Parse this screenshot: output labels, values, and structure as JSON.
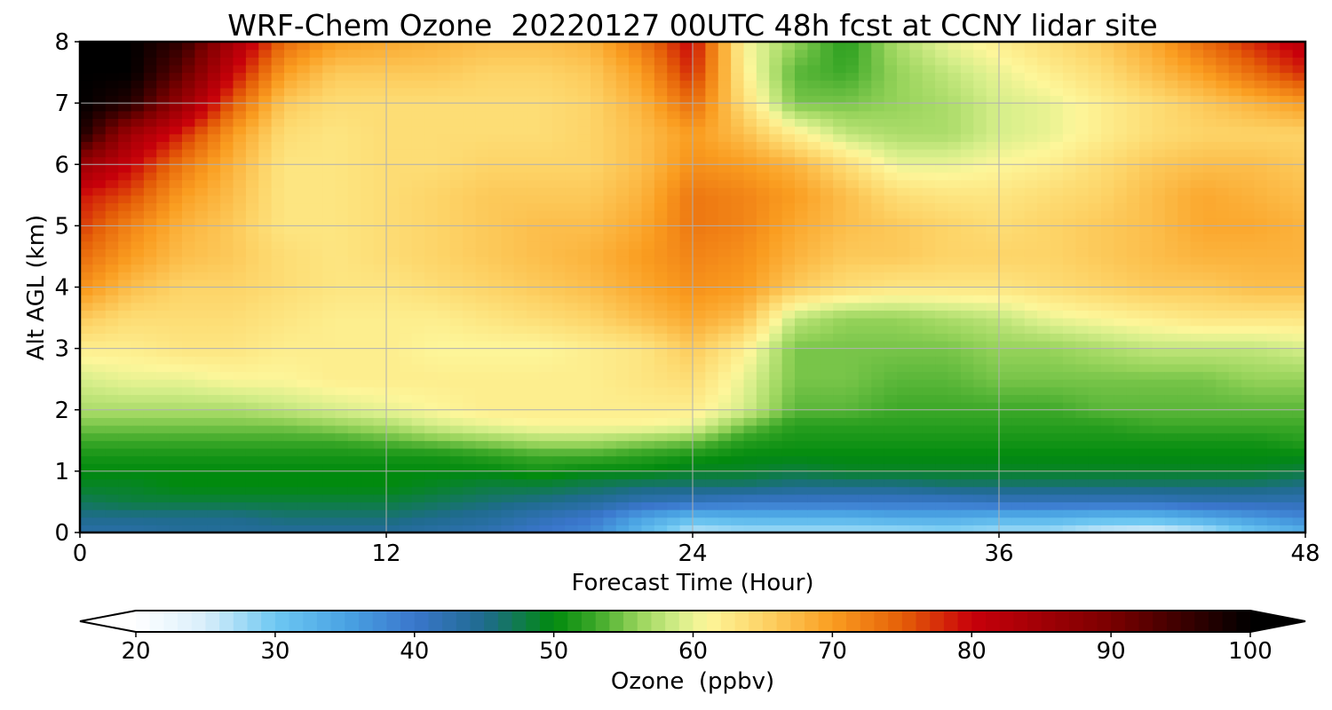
{
  "chart_data": {
    "type": "heatmap",
    "title": "WRF-Chem Ozone  20220127 00UTC 48h fcst at CCNY lidar site",
    "xlabel": "Forecast Time (Hour)",
    "ylabel": "Alt AGL (km)",
    "xlim": [
      0,
      48
    ],
    "ylim": [
      0,
      8
    ],
    "xticks": [
      0,
      12,
      24,
      36,
      48
    ],
    "yticks": [
      0,
      1,
      2,
      3,
      4,
      5,
      6,
      7,
      8
    ],
    "grid": true,
    "x": [
      0,
      2,
      4,
      6,
      8,
      10,
      12,
      14,
      16,
      18,
      20,
      22,
      24,
      26,
      28,
      30,
      32,
      34,
      36,
      38,
      40,
      42,
      44,
      46,
      48
    ],
    "y": [
      0,
      0.25,
      0.5,
      0.75,
      1,
      1.25,
      1.5,
      1.75,
      2,
      2.5,
      3,
      3.5,
      4,
      4.5,
      5,
      5.5,
      6,
      6.5,
      7,
      7.5,
      8
    ],
    "z": [
      [
        43,
        43,
        44,
        44,
        44,
        44,
        44,
        43,
        42,
        40,
        38,
        32,
        26,
        27,
        27,
        27,
        27,
        28,
        27,
        27,
        25,
        24,
        26,
        30,
        33
      ],
      [
        45,
        45,
        45,
        45,
        46,
        46,
        46,
        45,
        44,
        42,
        40,
        35,
        32,
        33,
        33,
        33,
        34,
        34,
        33,
        33,
        32,
        32,
        34,
        36,
        38
      ],
      [
        47,
        48,
        48,
        48,
        48,
        48,
        48,
        47,
        46,
        45,
        44,
        42,
        41,
        40,
        40,
        40,
        40,
        40,
        41,
        41,
        41,
        41,
        42,
        42,
        42
      ],
      [
        49,
        49,
        50,
        50,
        50,
        50,
        50,
        49,
        48,
        48,
        47,
        46,
        46,
        46,
        45,
        45,
        45,
        46,
        46,
        46,
        46,
        46,
        46,
        46,
        45
      ],
      [
        50,
        50,
        50,
        50,
        50,
        50,
        50,
        50,
        50,
        51,
        50,
        50,
        49,
        49,
        48,
        49,
        49,
        49,
        49,
        49,
        49,
        49,
        49,
        49,
        48
      ],
      [
        51,
        51,
        51,
        51,
        51,
        51,
        51,
        51,
        52,
        53,
        53,
        52,
        51,
        50,
        50,
        50,
        50,
        50,
        50,
        50,
        50,
        50,
        50,
        50,
        50
      ],
      [
        53,
        53,
        53,
        53,
        53,
        53,
        54,
        55,
        56,
        57,
        57,
        56,
        55,
        52,
        51,
        51,
        51,
        51,
        51,
        51,
        51,
        51,
        51,
        51,
        52
      ],
      [
        55,
        55,
        55,
        55,
        55,
        56,
        57,
        59,
        60,
        61,
        61,
        61,
        60,
        55,
        52,
        52,
        52,
        52,
        52,
        52,
        52,
        53,
        53,
        53,
        53
      ],
      [
        57,
        57,
        57,
        57,
        58,
        59,
        60,
        61,
        62,
        62,
        62,
        62,
        62,
        59,
        54,
        54,
        53,
        53,
        53,
        53,
        54,
        54,
        54,
        54,
        54
      ],
      [
        59,
        60,
        60,
        61,
        61,
        62,
        62,
        62,
        62,
        62,
        62,
        63,
        64,
        60,
        55,
        55,
        54,
        54,
        55,
        55,
        55,
        55,
        55,
        56,
        56
      ],
      [
        62,
        62,
        63,
        63,
        62,
        62,
        62,
        61,
        61,
        61,
        62,
        63,
        66,
        62,
        55,
        55,
        55,
        55,
        56,
        56,
        57,
        58,
        58,
        58,
        59
      ],
      [
        66,
        64,
        64,
        64,
        63,
        62,
        62,
        62,
        63,
        64,
        65,
        67,
        69,
        67,
        58,
        56,
        56,
        57,
        58,
        60,
        61,
        62,
        63,
        63,
        63
      ],
      [
        71,
        67,
        65,
        65,
        64,
        63,
        63,
        64,
        65,
        66,
        67,
        69,
        71,
        70,
        66,
        64,
        63,
        63,
        63,
        64,
        65,
        66,
        66,
        67,
        67
      ],
      [
        74,
        70,
        67,
        66,
        64,
        63,
        64,
        65,
        66,
        67,
        68,
        70,
        72,
        71,
        68,
        66,
        66,
        65,
        65,
        65,
        66,
        67,
        68,
        68,
        68
      ],
      [
        77,
        72,
        68,
        66,
        63,
        63,
        64,
        65,
        66,
        67,
        67,
        69,
        73,
        72,
        69,
        67,
        66,
        65,
        64,
        65,
        66,
        67,
        69,
        69,
        68
      ],
      [
        79,
        76,
        70,
        67,
        63,
        63,
        64,
        65,
        66,
        66,
        66,
        68,
        73,
        72,
        70,
        67,
        64,
        63,
        63,
        64,
        65,
        67,
        69,
        68,
        67
      ],
      [
        86,
        80,
        73,
        68,
        63,
        63,
        64,
        64,
        65,
        65,
        65,
        67,
        71,
        70,
        68,
        64,
        60,
        60,
        61,
        62,
        64,
        66,
        67,
        67,
        66
      ],
      [
        98,
        85,
        78,
        70,
        64,
        63,
        64,
        64,
        64,
        64,
        65,
        67,
        70,
        67,
        62,
        58,
        57,
        57,
        59,
        60,
        62,
        64,
        65,
        65,
        65
      ],
      [
        100,
        97,
        86,
        75,
        66,
        64,
        64,
        64,
        64,
        64,
        65,
        68,
        74,
        64,
        55,
        55,
        56,
        57,
        59,
        60,
        62,
        64,
        66,
        68,
        70
      ],
      [
        100,
        100,
        92,
        80,
        70,
        66,
        66,
        66,
        65,
        65,
        66,
        70,
        78,
        62,
        54,
        53,
        56,
        58,
        60,
        62,
        64,
        67,
        70,
        74,
        78
      ],
      [
        100,
        100,
        96,
        84,
        74,
        70,
        69,
        68,
        67,
        67,
        68,
        73,
        80,
        61,
        56,
        52,
        57,
        60,
        62,
        64,
        66,
        69,
        74,
        78,
        82
      ]
    ],
    "colorbar": {
      "label": "Ozone  (ppbv)",
      "vmin": 20,
      "vmax": 100,
      "ticks": [
        20,
        30,
        40,
        50,
        60,
        70,
        80,
        90,
        100
      ],
      "extend": "both",
      "colormap": [
        [
          20,
          "#ffffff"
        ],
        [
          25,
          "#d8eefa"
        ],
        [
          30,
          "#6ec8f2"
        ],
        [
          35,
          "#4aa3e3"
        ],
        [
          40,
          "#3a76cc"
        ],
        [
          45,
          "#1f6b8e"
        ],
        [
          50,
          "#018a0e"
        ],
        [
          53,
          "#3ca828"
        ],
        [
          56,
          "#96d35a"
        ],
        [
          59,
          "#d6ee8a"
        ],
        [
          61,
          "#fdf69a"
        ],
        [
          65,
          "#fdd468"
        ],
        [
          70,
          "#fa9d20"
        ],
        [
          75,
          "#e55f08"
        ],
        [
          80,
          "#c8000a"
        ],
        [
          90,
          "#7a0000"
        ],
        [
          100,
          "#000000"
        ]
      ]
    }
  }
}
